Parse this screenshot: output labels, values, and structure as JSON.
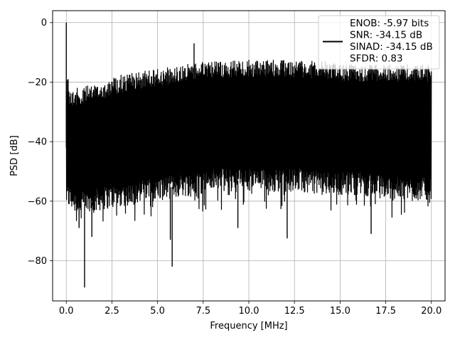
{
  "chart_data": {
    "type": "line",
    "xlabel": "Frequency [MHz]",
    "ylabel": "PSD [dB]",
    "xlim": [
      -0.75,
      20.75
    ],
    "ylim": [
      -93.5,
      4
    ],
    "x_ticks": [
      0.0,
      2.5,
      5.0,
      7.5,
      10.0,
      12.5,
      15.0,
      17.5,
      20.0
    ],
    "x_tick_labels": [
      "0.0",
      "2.5",
      "5.0",
      "7.5",
      "10.0",
      "12.5",
      "15.0",
      "17.5",
      "20.0"
    ],
    "y_ticks": [
      0,
      -20,
      -40,
      -60,
      -80
    ],
    "y_tick_labels": [
      "0",
      "−20",
      "−40",
      "−60",
      "−80"
    ],
    "grid": true,
    "legend_position": "top-right",
    "series": [
      {
        "name": "ENOB: -5.97 bits\nSNR: -34.15 dB\nSINAD: -34.15 dB\nSFDR: 0.83",
        "color": "#000000",
        "upper_envelope": {
          "x": [
            0.0,
            0.05,
            0.15,
            0.5,
            1.0,
            2.0,
            3.0,
            4.0,
            5.0,
            6.0,
            7.0,
            8.0,
            9.0,
            10.0,
            11.0,
            12.0,
            13.0,
            14.0,
            15.0,
            16.0,
            17.0,
            18.0,
            19.0,
            20.0
          ],
          "y": [
            -19,
            -18,
            -22,
            -22,
            -21.5,
            -19.5,
            -17.5,
            -16.5,
            -15.5,
            -14.5,
            -13.5,
            -13.0,
            -12.5,
            -12.5,
            -12.5,
            -12.5,
            -12.5,
            -13.0,
            -13.5,
            -14.0,
            -14.0,
            -14.0,
            -14.0,
            -14.0
          ]
        },
        "lower_envelope": {
          "x": [
            0.0,
            0.5,
            1.0,
            2.0,
            3.0,
            4.0,
            5.0,
            6.0,
            7.0,
            8.0,
            9.0,
            10.0,
            11.0,
            12.0,
            13.0,
            14.0,
            15.0,
            16.0,
            17.0,
            18.0,
            19.0,
            20.0
          ],
          "y": [
            -62,
            -64,
            -65,
            -63,
            -62,
            -61,
            -60,
            -59,
            -58,
            -57,
            -57,
            -57,
            -57,
            -57,
            -57,
            -58,
            -58,
            -58,
            -59,
            -60,
            -60,
            -60
          ]
        },
        "peaks": [
          {
            "x": 0.0,
            "y": 0.0
          },
          {
            "x": 0.1,
            "y": -19.0
          },
          {
            "x": 7.0,
            "y": -7.0
          }
        ],
        "dips": [
          {
            "x": 1.0,
            "y": -89.0
          },
          {
            "x": 5.8,
            "y": -82.0
          },
          {
            "x": 5.7,
            "y": -73.0
          },
          {
            "x": 0.7,
            "y": -69.0
          },
          {
            "x": 1.4,
            "y": -72.0
          },
          {
            "x": 9.4,
            "y": -69.0
          },
          {
            "x": 12.1,
            "y": -72.5
          },
          {
            "x": 16.7,
            "y": -71.0
          }
        ]
      }
    ]
  }
}
